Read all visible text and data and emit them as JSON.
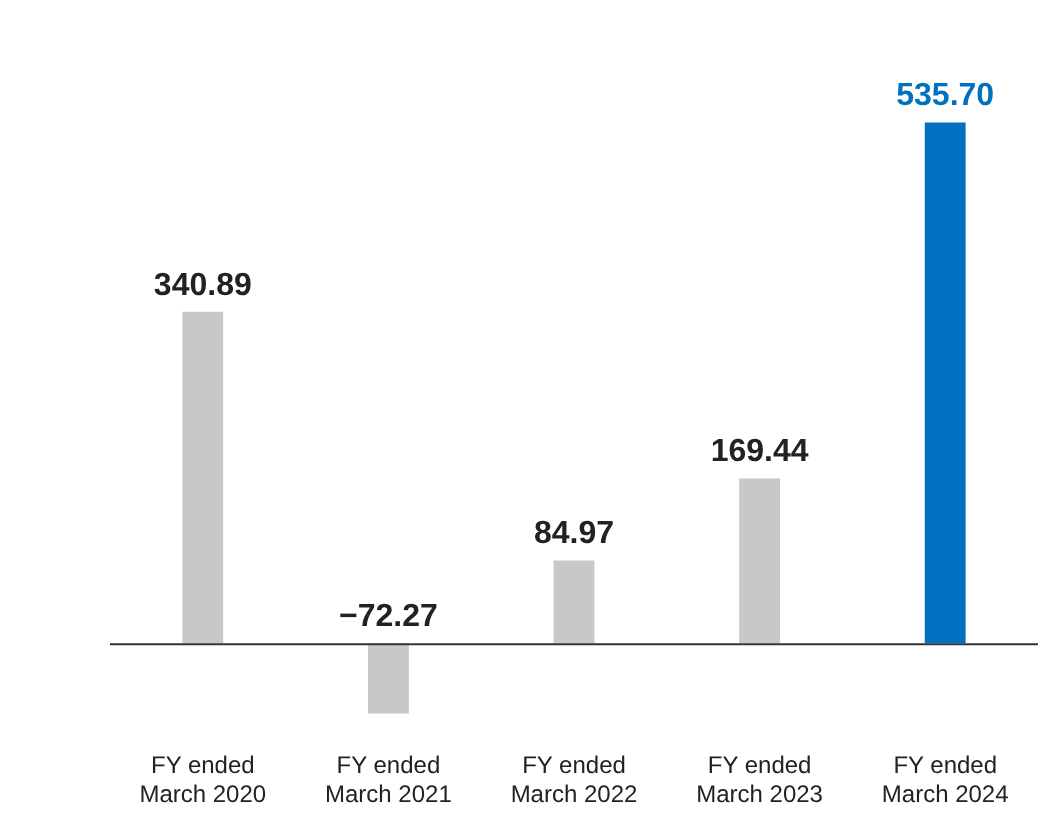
{
  "chart_data": {
    "type": "bar",
    "categories": [
      "FY ended\nMarch 2020",
      "FY ended\nMarch 2021",
      "FY ended\nMarch 2022",
      "FY ended\nMarch 2023",
      "FY ended\nMarch 2024"
    ],
    "values": [
      340.89,
      -72.27,
      84.97,
      169.44,
      535.7
    ],
    "colors": [
      "#c8c8c8",
      "#c8c8c8",
      "#c8c8c8",
      "#c8c8c8",
      "#0070c0"
    ],
    "value_labels": [
      "340.89",
      "−72.27",
      "84.97",
      "169.44",
      "535.70"
    ],
    "grid": false,
    "legend": false
  }
}
